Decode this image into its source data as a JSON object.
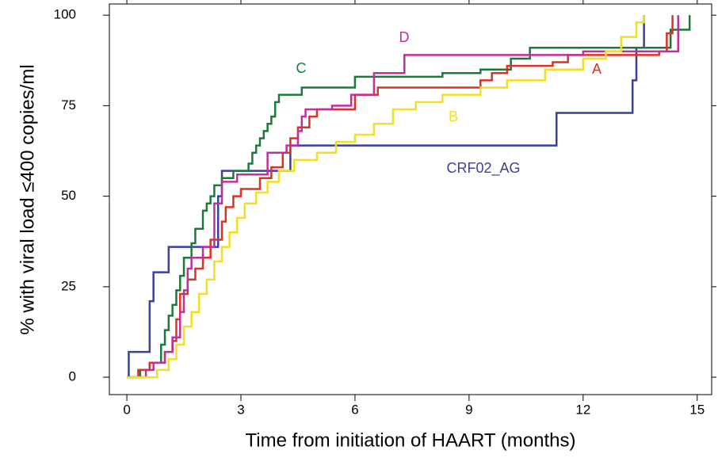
{
  "chart_data": {
    "type": "line",
    "step": "post",
    "x_label": "Time from  initiation of HAART (months)",
    "y_label": "% with viral load ≤400 copies/ml",
    "xlim": [
      -0.46,
      15.38
    ],
    "ylim": [
      -4.8,
      103.1
    ],
    "xticks": [
      0,
      3,
      6,
      9,
      12,
      15
    ],
    "yticks": [
      0,
      25,
      50,
      75,
      100
    ],
    "series": [
      {
        "name": "CRF02_AG",
        "color": "#3a3fa0",
        "x": [
          0,
          0.05,
          0.6,
          0.7,
          1.1,
          2.4,
          2.5,
          4.3,
          11.3,
          13.3,
          13.4,
          13.6
        ],
        "values": [
          0,
          7,
          21,
          29,
          36,
          50,
          57,
          64,
          73,
          82,
          91,
          100
        ]
      },
      {
        "name": "C",
        "color": "#1a7a3a",
        "x": [
          0,
          0.35,
          0.6,
          0.9,
          1.0,
          1.1,
          1.2,
          1.3,
          1.4,
          1.5,
          1.7,
          1.8,
          2.0,
          2.1,
          2.2,
          2.3,
          2.5,
          2.8,
          3.2,
          3.3,
          3.4,
          3.5,
          3.6,
          3.7,
          3.8,
          3.9,
          4.0,
          4.6,
          6.0,
          8.3,
          9.3,
          10.1,
          10.6,
          14.3,
          14.8
        ],
        "values": [
          0,
          2,
          4,
          9,
          13,
          17,
          20,
          24,
          28,
          33,
          37,
          41,
          46,
          48,
          50,
          53,
          55,
          57,
          59,
          62,
          64,
          66,
          68,
          70,
          72,
          76,
          78,
          80,
          83,
          84,
          85,
          88,
          91,
          96,
          100
        ]
      },
      {
        "name": "A",
        "color": "#e03020",
        "x": [
          0,
          0.3,
          0.6,
          1.0,
          1.2,
          1.3,
          1.4,
          1.6,
          1.8,
          2.0,
          2.2,
          2.5,
          2.6,
          2.8,
          3.0,
          3.5,
          3.8,
          4.1,
          4.3,
          4.5,
          4.8,
          5.0,
          6.0,
          6.6,
          9.3,
          9.6,
          10.0,
          11.2,
          11.6,
          14.0,
          14.2,
          14.35
        ],
        "values": [
          0,
          2,
          4,
          7,
          10,
          16,
          23,
          27,
          30,
          33,
          38,
          43,
          47,
          50,
          52,
          55,
          58,
          62,
          66,
          69,
          72,
          74,
          78,
          80,
          82,
          84,
          86,
          87,
          89,
          90,
          95,
          100
        ]
      },
      {
        "name": "D",
        "color": "#c0309a",
        "x": [
          0,
          0.5,
          0.7,
          1.0,
          1.2,
          1.4,
          1.5,
          1.6,
          1.7,
          2.0,
          2.3,
          2.5,
          2.9,
          3.7,
          4.2,
          4.5,
          4.6,
          4.7,
          5.4,
          5.9,
          6.5,
          7.3,
          12.0,
          14.5
        ],
        "values": [
          0,
          2,
          4,
          7,
          11,
          18,
          24,
          30,
          33,
          36,
          48,
          54,
          56,
          62,
          64,
          68,
          72,
          74,
          75,
          78,
          84,
          89,
          90,
          100
        ]
      },
      {
        "name": "B",
        "color": "#f0e020",
        "x": [
          0,
          0.3,
          0.8,
          1.1,
          1.3,
          1.5,
          1.7,
          1.9,
          2.1,
          2.3,
          2.5,
          2.7,
          2.9,
          3.1,
          3.4,
          3.7,
          4.0,
          4.4,
          5.0,
          5.5,
          6.0,
          6.5,
          7.0,
          7.6,
          8.3,
          9.3,
          10.0,
          11.0,
          12.0,
          12.6,
          13.0,
          13.4,
          13.6
        ],
        "values": [
          0,
          0,
          2,
          5,
          9,
          14,
          18,
          23,
          27,
          32,
          36,
          40,
          44,
          48,
          51,
          54,
          57,
          60,
          62,
          65,
          67,
          70,
          74,
          76,
          78,
          80,
          82,
          85,
          88,
          90,
          94,
          98,
          100
        ]
      }
    ]
  }
}
